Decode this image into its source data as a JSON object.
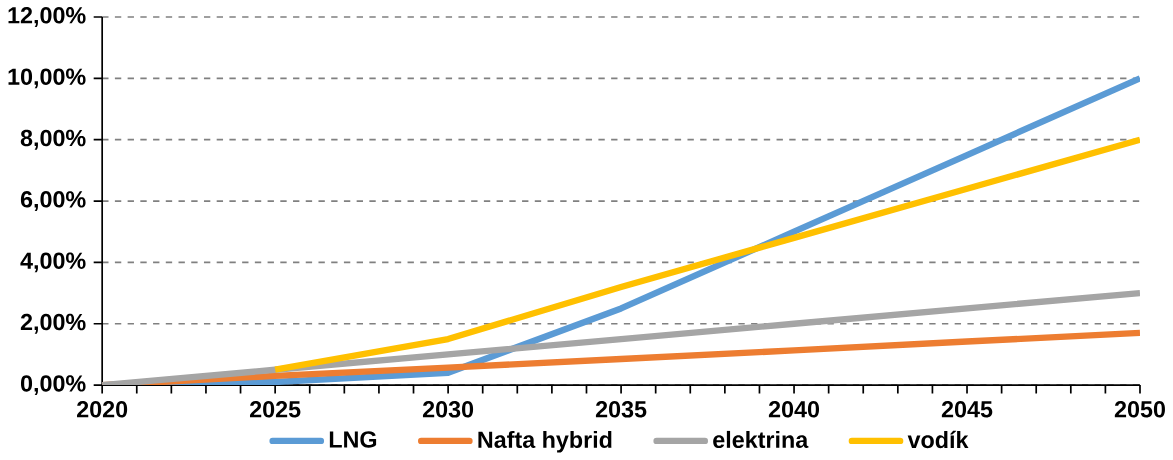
{
  "chart_data": {
    "type": "line",
    "x": [
      2020,
      2025,
      2030,
      2035,
      2040,
      2045,
      2050
    ],
    "series": [
      {
        "name": "LNG",
        "color": "#5b9bd5",
        "values": [
          0,
          0.1,
          0.4,
          2.5,
          5,
          7.5,
          10
        ]
      },
      {
        "name": "Nafta hybrid",
        "color": "#ed7d31",
        "values": [
          0,
          0.3,
          0.57,
          0.85,
          1.13,
          1.42,
          1.7
        ]
      },
      {
        "name": "elektrina",
        "color": "#a5a5a5",
        "values": [
          0,
          0.5,
          1.0,
          1.5,
          2.0,
          2.5,
          3.0
        ]
      },
      {
        "name": "vodík",
        "color": "#ffc000",
        "values": [
          null,
          0.5,
          1.5,
          3.2,
          4.8,
          6.4,
          8.0
        ]
      }
    ],
    "xlim": [
      2020,
      2050
    ],
    "xticks": [
      2020,
      {
        "value": 2021,
        "label": null
      },
      {
        "value": 2022,
        "label": null
      },
      {
        "value": 2023,
        "label": null
      },
      {
        "value": 2024,
        "label": null
      },
      2025,
      {
        "value": 2026,
        "label": null
      },
      {
        "value": 2027,
        "label": null
      },
      {
        "value": 2028,
        "label": null
      },
      {
        "value": 2029,
        "label": null
      },
      2030,
      {
        "value": 2031,
        "label": null
      },
      {
        "value": 2032,
        "label": null
      },
      {
        "value": 2033,
        "label": null
      },
      {
        "value": 2034,
        "label": null
      },
      2035,
      {
        "value": 2036,
        "label": null
      },
      {
        "value": 2037,
        "label": null
      },
      {
        "value": 2038,
        "label": null
      },
      {
        "value": 2039,
        "label": null
      },
      2040,
      {
        "value": 2041,
        "label": null
      },
      {
        "value": 2042,
        "label": null
      },
      {
        "value": 2043,
        "label": null
      },
      {
        "value": 2044,
        "label": null
      },
      2045,
      {
        "value": 2046,
        "label": null
      },
      {
        "value": 2047,
        "label": null
      },
      {
        "value": 2048,
        "label": null
      },
      {
        "value": 2049,
        "label": null
      },
      2050
    ],
    "ylim": [
      0,
      12
    ],
    "yticks": [
      {
        "value": 0,
        "label": "0,00%"
      },
      {
        "value": 2,
        "label": "2,00%"
      },
      {
        "value": 4,
        "label": "4,00%"
      },
      {
        "value": 6,
        "label": "6,00%"
      },
      {
        "value": 8,
        "label": "8,00%"
      },
      {
        "value": 10,
        "label": "10,00%"
      },
      {
        "value": 12,
        "label": "12,00%"
      }
    ],
    "grid": "y",
    "legend": "bottom",
    "marker": "none",
    "line_style": "solid"
  }
}
